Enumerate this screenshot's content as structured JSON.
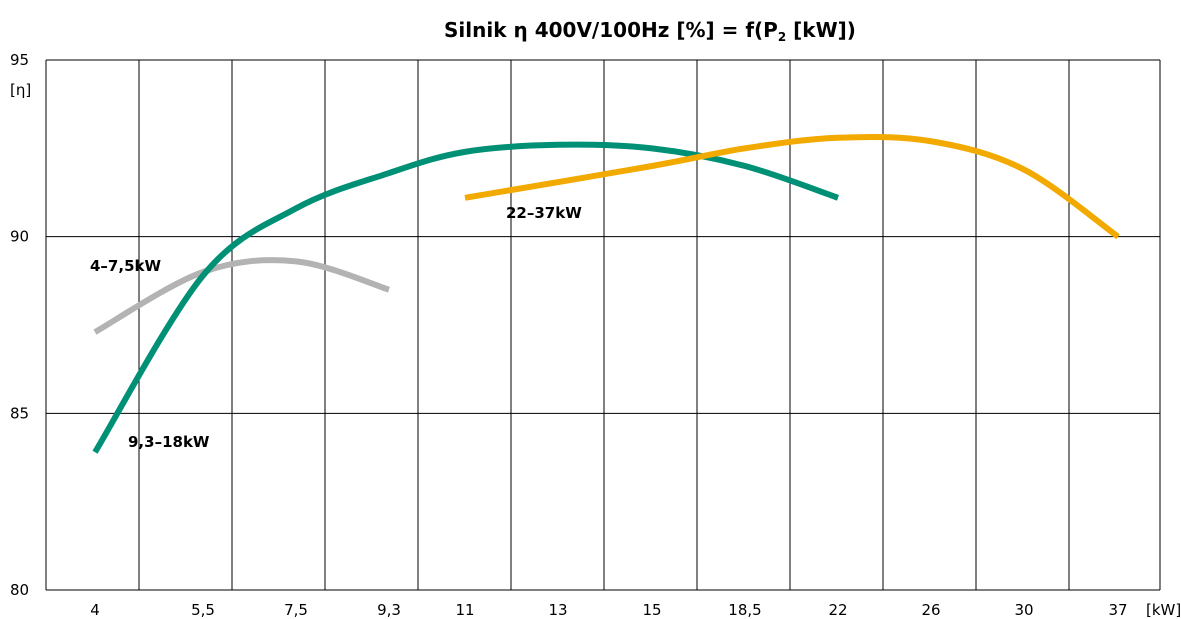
{
  "chart_data": {
    "type": "line",
    "title": {
      "prefix": "Silnik η 400V/100Hz [%] = f(P",
      "subscript": "2",
      "suffix": " [kW])"
    },
    "ylabel": "[η]",
    "xlabel": "[kW]",
    "ylim": [
      80,
      95
    ],
    "yticks": [
      "80",
      "85",
      "90",
      "95"
    ],
    "categories": [
      "4",
      "5,5",
      "7,5",
      "9,3",
      "11",
      "13",
      "15",
      "18,5",
      "22",
      "26",
      "30",
      "37"
    ],
    "grid": true,
    "series": [
      {
        "name": "4–7,5kW",
        "color": "#b3b3b3",
        "x": [
          4,
          5.5,
          7.5,
          9.3
        ],
        "y": [
          87.3,
          89.0,
          89.3,
          88.5
        ]
      },
      {
        "name": "9,3–18kW",
        "color": "#009075",
        "x": [
          4,
          5.5,
          7.5,
          9.3,
          11,
          13,
          15,
          18.5,
          22
        ],
        "y": [
          83.9,
          88.9,
          90.8,
          91.8,
          92.4,
          92.6,
          92.5,
          92.0,
          91.1
        ]
      },
      {
        "name": "22–37kW",
        "color": "#f2a900",
        "x": [
          11,
          15,
          18.5,
          22,
          26,
          30,
          37
        ],
        "y": [
          91.1,
          92.0,
          92.5,
          92.8,
          92.7,
          91.9,
          90.0
        ]
      }
    ]
  }
}
